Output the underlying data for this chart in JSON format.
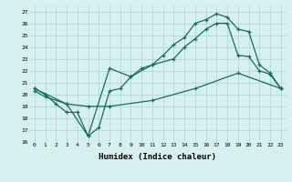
{
  "xlabel": "Humidex (Indice chaleur)",
  "background_color": "#d6f0f0",
  "grid_color": "#b8dada",
  "line_color": "#1a6b5a",
  "xlim": [
    -0.5,
    23.5
  ],
  "ylim": [
    16,
    27.5
  ],
  "xticks": [
    0,
    1,
    2,
    3,
    4,
    5,
    6,
    7,
    8,
    9,
    10,
    11,
    12,
    13,
    14,
    15,
    16,
    17,
    18,
    19,
    20,
    21,
    22,
    23
  ],
  "yticks": [
    16,
    17,
    18,
    19,
    20,
    21,
    22,
    23,
    24,
    25,
    26,
    27
  ],
  "line1_x": [
    0,
    1,
    2,
    3,
    4,
    5,
    6,
    7,
    8,
    9,
    10,
    11,
    12,
    13,
    14,
    15,
    16,
    17,
    18,
    19,
    20,
    21,
    22,
    23
  ],
  "line1_y": [
    20.5,
    20.0,
    19.2,
    18.5,
    18.5,
    16.5,
    17.2,
    20.3,
    20.5,
    21.5,
    22.2,
    22.5,
    23.3,
    24.2,
    24.8,
    26.0,
    26.3,
    26.8,
    26.5,
    25.5,
    25.3,
    22.5,
    21.8,
    20.5
  ],
  "line2_x": [
    0,
    3,
    5,
    7,
    9,
    11,
    13,
    14,
    15,
    16,
    17,
    18,
    19,
    20,
    21,
    22,
    23
  ],
  "line2_y": [
    20.5,
    19.2,
    16.5,
    22.2,
    21.5,
    22.5,
    23.0,
    24.0,
    24.7,
    25.5,
    26.0,
    26.0,
    23.3,
    23.2,
    22.0,
    21.7,
    20.5
  ],
  "line3_x": [
    0,
    1,
    3,
    5,
    7,
    11,
    15,
    19,
    23
  ],
  "line3_y": [
    20.3,
    19.8,
    19.2,
    19.0,
    19.0,
    19.5,
    20.5,
    21.8,
    20.5
  ]
}
